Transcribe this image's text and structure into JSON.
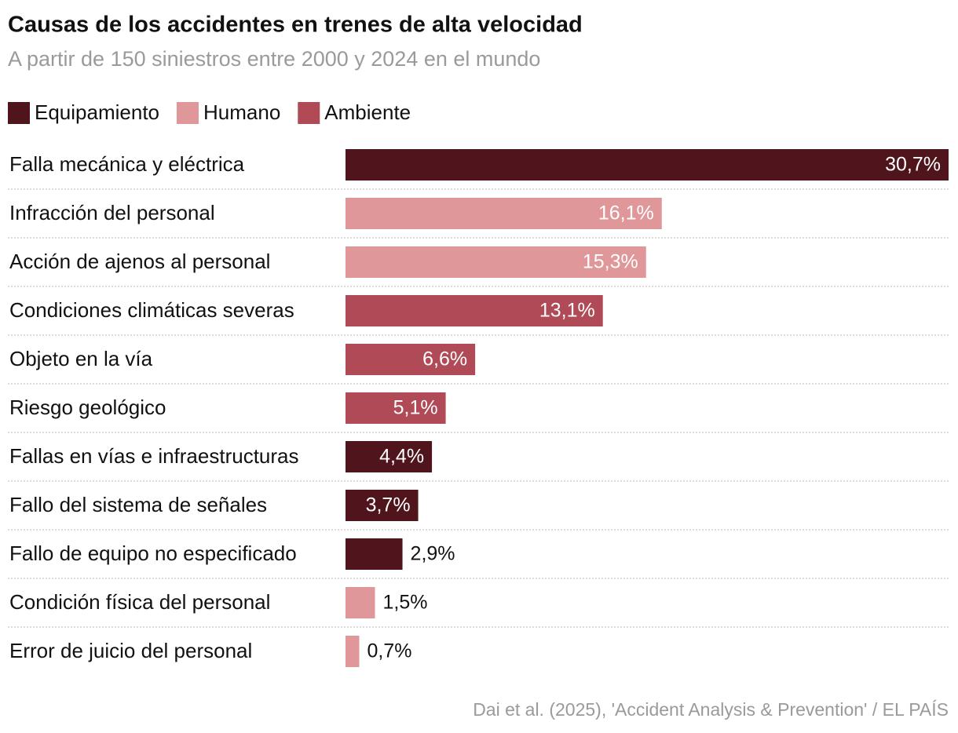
{
  "chart_data": {
    "type": "bar",
    "title": "Causas de los accidentes en trenes de alta velocidad",
    "subtitle": "A partir de 150 siniestros entre 2000 y 2024 en el mundo",
    "source": "Dai et al. (2025), 'Accident Analysis & Prevention' / EL PAÍS",
    "categories": [
      "Falla mecánica y eléctrica",
      "Infracción del personal",
      "Acción de ajenos al personal",
      "Condiciones climáticas severas",
      "Objeto en la vía",
      "Riesgo geológico",
      "Fallas en vías e infraestructuras",
      "Fallo del sistema de señales",
      "Fallo de equipo no especificado",
      "Condición física del personal",
      "Error de juicio del personal"
    ],
    "series": [
      {
        "name": "Equipamiento",
        "color": "#4f141c",
        "values": [
          30.7,
          null,
          null,
          null,
          null,
          null,
          4.4,
          3.7,
          2.9,
          null,
          null
        ],
        "value_labels": [
          "30,7%",
          null,
          null,
          null,
          null,
          null,
          "4,4%",
          "3,7%",
          "2,9%",
          null,
          null
        ]
      },
      {
        "name": "Humano",
        "color": "#e0979a",
        "values": [
          null,
          16.1,
          15.3,
          null,
          null,
          null,
          null,
          null,
          null,
          1.5,
          0.7
        ],
        "value_labels": [
          null,
          "16,1%",
          "15,3%",
          null,
          null,
          null,
          null,
          null,
          null,
          "1,5%",
          "0,7%"
        ]
      },
      {
        "name": "Ambiente",
        "color": "#b04a56",
        "values": [
          null,
          null,
          null,
          13.1,
          6.6,
          5.1,
          null,
          null,
          null,
          null,
          null
        ],
        "value_labels": [
          null,
          null,
          null,
          "13,1%",
          "6,6%",
          "5,1%",
          null,
          null,
          null,
          null,
          null
        ]
      }
    ]
  }
}
